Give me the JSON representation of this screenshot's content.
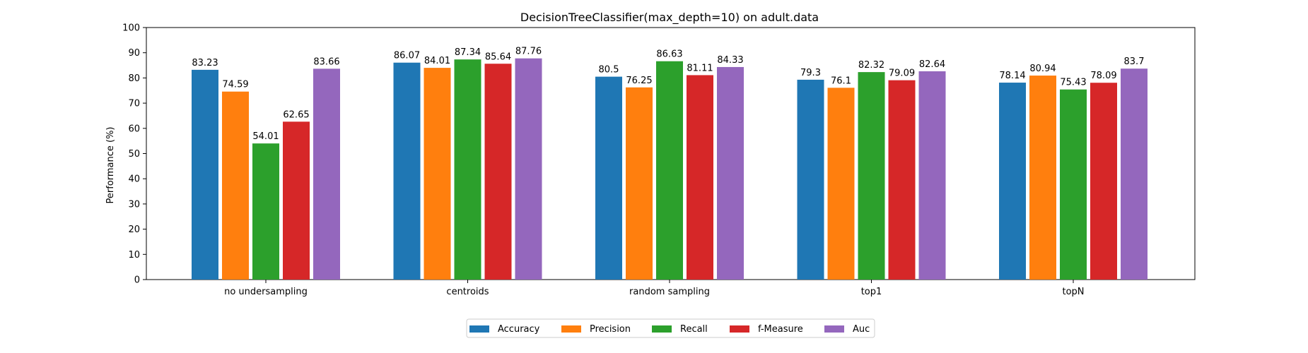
{
  "chart_data": {
    "type": "bar",
    "title": "DecisionTreeClassifier(max_depth=10) on adult.data",
    "xlabel": "",
    "ylabel": "Performance (%)",
    "ylim": [
      0,
      100
    ],
    "yticks": [
      0,
      10,
      20,
      30,
      40,
      50,
      60,
      70,
      80,
      90,
      100
    ],
    "grid": false,
    "legend_position": "bottom-center",
    "categories": [
      "no undersampling",
      "centroids",
      "random sampling",
      "top1",
      "topN"
    ],
    "series": [
      {
        "name": "Accuracy",
        "color": "#1f77b4",
        "values": [
          83.23,
          86.07,
          80.5,
          79.3,
          78.14
        ]
      },
      {
        "name": "Precision",
        "color": "#ff7f0e",
        "values": [
          74.59,
          84.01,
          76.25,
          76.1,
          80.94
        ]
      },
      {
        "name": "Recall",
        "color": "#2ca02c",
        "values": [
          54.01,
          87.34,
          86.63,
          82.32,
          75.43
        ]
      },
      {
        "name": "f-Measure",
        "color": "#d62728",
        "values": [
          62.65,
          85.64,
          81.11,
          79.09,
          78.09
        ]
      },
      {
        "name": "Auc",
        "color": "#9467bd",
        "values": [
          83.66,
          87.76,
          84.33,
          82.64,
          83.7
        ]
      }
    ]
  }
}
